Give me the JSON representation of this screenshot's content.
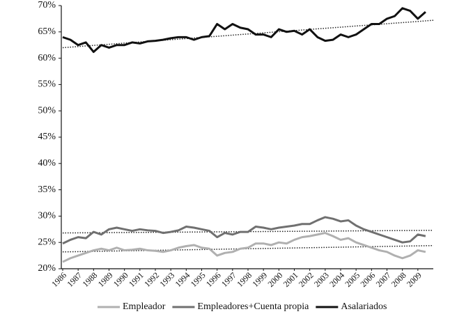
{
  "chart_data": {
    "type": "line",
    "x": [
      1986,
      1986.5,
      1987,
      1987.5,
      1988,
      1988.5,
      1989,
      1989.5,
      1990,
      1990.5,
      1991,
      1991.5,
      1992,
      1992.5,
      1993,
      1993.5,
      1994,
      1994.5,
      1995,
      1995.5,
      1996,
      1996.5,
      1997,
      1997.5,
      1998,
      1998.5,
      1999,
      1999.5,
      2000,
      2000.5,
      2001,
      2001.5,
      2002,
      2002.5,
      2003,
      2003.5,
      2004,
      2004.5,
      2005,
      2005.5,
      2006,
      2006.5,
      2007,
      2007.5,
      2008,
      2008.5,
      2009,
      2009.5
    ],
    "xlim": [
      1986,
      2010
    ],
    "xticks": [
      1986,
      1987,
      1988,
      1989,
      1990,
      1991,
      1992,
      1993,
      1994,
      1995,
      1996,
      1997,
      1998,
      1999,
      2000,
      2001,
      2002,
      2003,
      2004,
      2005,
      2006,
      2007,
      2008,
      2009
    ],
    "ylim": [
      20,
      70
    ],
    "yticks": [
      {
        "value": 20,
        "label": "20%"
      },
      {
        "value": 25,
        "label": "25%"
      },
      {
        "value": 30,
        "label": "30%"
      },
      {
        "value": 35,
        "label": "35%"
      },
      {
        "value": 40,
        "label": "40%"
      },
      {
        "value": 45,
        "label": "45%"
      },
      {
        "value": 50,
        "label": "50%"
      },
      {
        "value": 55,
        "label": "55%"
      },
      {
        "value": 60,
        "label": "60%"
      },
      {
        "value": 65,
        "label": "65%"
      },
      {
        "value": 70,
        "label": "70%"
      }
    ],
    "series": [
      {
        "name": "Empleador",
        "color": "#b0b0b0",
        "trend": [
          23.2,
          24.4
        ],
        "values": [
          21.3,
          22,
          22.5,
          23,
          23.5,
          23.8,
          23.5,
          24,
          23.5,
          23.6,
          23.8,
          23.5,
          23.4,
          23.2,
          23.5,
          24,
          24.3,
          24.5,
          24,
          23.8,
          22.5,
          23,
          23.2,
          23.8,
          24,
          24.8,
          24.8,
          24.5,
          25,
          24.8,
          25.5,
          26,
          26.2,
          26.5,
          26.8,
          26.2,
          25.5,
          25.8,
          25,
          24.5,
          24,
          23.5,
          23.2,
          22.5,
          22,
          22.5,
          23.5,
          23.2
        ]
      },
      {
        "name": "Empleadores+Cuenta propia",
        "color": "#707070",
        "trend": [
          26.8,
          27.3
        ],
        "values": [
          24.8,
          25.5,
          26,
          25.8,
          27,
          26.5,
          27.5,
          27.8,
          27.5,
          27.2,
          27.5,
          27.3,
          27.2,
          26.8,
          27,
          27.3,
          28,
          27.8,
          27.5,
          27.2,
          26,
          26.8,
          26.5,
          27,
          27,
          28,
          27.8,
          27.5,
          27.8,
          28,
          28.2,
          28.5,
          28.5,
          29.2,
          29.8,
          29.5,
          29,
          29.2,
          28.2,
          27.5,
          27,
          26.5,
          26,
          25.5,
          25,
          25.2,
          26.5,
          26.2
        ]
      },
      {
        "name": "Asalariados",
        "color": "#111111",
        "trend": [
          62,
          67.2
        ],
        "values": [
          64,
          63.5,
          62.5,
          63,
          61.2,
          62.5,
          62,
          62.5,
          62.5,
          63,
          62.8,
          63.2,
          63.3,
          63.5,
          63.8,
          64,
          64,
          63.5,
          64,
          64.2,
          66.5,
          65.5,
          66.5,
          65.8,
          65.5,
          64.5,
          64.5,
          64,
          65.5,
          65,
          65.2,
          64.5,
          65.5,
          64,
          63.3,
          63.5,
          64.5,
          64,
          64.5,
          65.5,
          66.5,
          66.5,
          67.5,
          68,
          69.5,
          69,
          67.5,
          68.8
        ]
      }
    ]
  }
}
